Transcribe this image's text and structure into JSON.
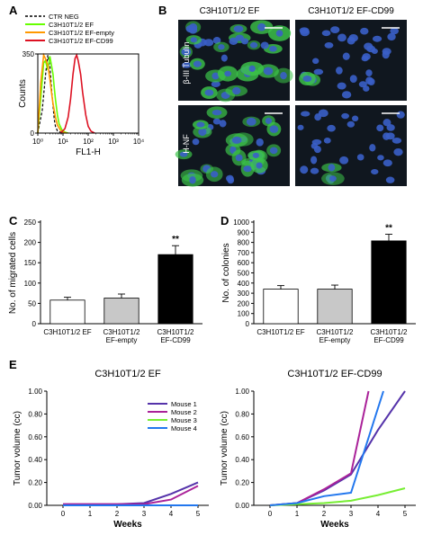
{
  "panels": {
    "A": "A",
    "B": "B",
    "C": "C",
    "D": "D",
    "E": "E"
  },
  "colors": {
    "ctr_neg": "#000000",
    "ef": "#66ff00",
    "ef_empty": "#ff9900",
    "ef_cd99": "#dd1122",
    "bar_white": "#ffffff",
    "bar_gray": "#c8c8c8",
    "bar_black": "#000000",
    "mouse1": "#5533aa",
    "mouse2": "#aa2299",
    "mouse3": "#77ee33",
    "mouse4": "#2277ee",
    "micro_bg": "#10171f",
    "tubulin_green": "#3cc44a",
    "nucleus_blue": "#3a5fc8"
  },
  "micrographs": {
    "col_ef": "C3H10T1/2 EF",
    "col_cd99": "C3H10T1/2 EF-CD99",
    "row_tubulin": "β-III Tubulin",
    "row_hnf": "H-NF"
  },
  "chart_data": [
    {
      "id": "A",
      "type": "line",
      "xlabel": "FL1-H",
      "ylabel": "Counts",
      "xscale": "log",
      "xlim": [
        1,
        10000
      ],
      "ylim": [
        0,
        350
      ],
      "xticks": [
        "10⁰",
        "10¹",
        "10²",
        "10³",
        "10⁴"
      ],
      "yticks": [
        "0",
        "350"
      ],
      "legend_position": "top-left",
      "series": [
        {
          "name": "CTR NEG",
          "style": "dashed",
          "color": "#000000",
          "x": [
            1,
            1.5,
            2,
            2.5,
            3,
            3.5,
            4,
            4.5,
            5,
            6,
            8,
            12
          ],
          "y": [
            0,
            100,
            250,
            345,
            300,
            200,
            120,
            60,
            30,
            10,
            3,
            0
          ]
        },
        {
          "name": "C3H10T1/2 EF",
          "style": "solid",
          "color": "#66ff00",
          "x": [
            1,
            1.3,
            1.7,
            2,
            2.5,
            3,
            3.5,
            4,
            4.5,
            5,
            6,
            7,
            9,
            12,
            16
          ],
          "y": [
            0,
            150,
            310,
            320,
            280,
            340,
            300,
            260,
            200,
            150,
            80,
            40,
            15,
            4,
            0
          ]
        },
        {
          "name": "C3H10T1/2 EF-empty",
          "style": "solid",
          "color": "#ff9900",
          "x": [
            1,
            1.3,
            1.7,
            2,
            2.5,
            3,
            3.5,
            4,
            5,
            6,
            8,
            10,
            14
          ],
          "y": [
            0,
            220,
            345,
            330,
            300,
            240,
            180,
            130,
            70,
            35,
            12,
            4,
            0
          ]
        },
        {
          "name": "C3H10T1/2 EF-CD99",
          "style": "solid",
          "color": "#dd1122",
          "x": [
            8,
            12,
            16,
            20,
            25,
            30,
            35,
            40,
            50,
            60,
            80,
            100,
            130,
            180
          ],
          "y": [
            0,
            20,
            70,
            150,
            260,
            330,
            345,
            320,
            260,
            180,
            80,
            30,
            8,
            0
          ]
        }
      ]
    },
    {
      "id": "C",
      "type": "bar",
      "ylabel": "No. of migrated cells",
      "ylim": [
        0,
        250
      ],
      "yticks": [
        0,
        50,
        100,
        150,
        200,
        250
      ],
      "categories": [
        [
          "C3H10T1/2 EF"
        ],
        [
          "C3H10T1/2",
          "EF-empty"
        ],
        [
          "C3H10T1/2",
          "EF-CD99"
        ]
      ],
      "values": [
        58,
        63,
        170
      ],
      "errors": [
        7,
        10,
        22
      ],
      "fills": [
        "#ffffff",
        "#c8c8c8",
        "#000000"
      ],
      "significance": [
        "",
        "",
        "**"
      ]
    },
    {
      "id": "D",
      "type": "bar",
      "ylabel": "No. of colonies",
      "ylim": [
        0,
        1000
      ],
      "yticks": [
        0,
        100,
        200,
        300,
        400,
        500,
        600,
        700,
        800,
        900,
        1000
      ],
      "categories": [
        [
          "C3H10T1/2 EF"
        ],
        [
          "C3H10T1/2",
          "EF-empty"
        ],
        [
          "C3H10T1/2",
          "EF-CD99"
        ]
      ],
      "values": [
        340,
        340,
        815
      ],
      "errors": [
        35,
        40,
        65
      ],
      "fills": [
        "#ffffff",
        "#c8c8c8",
        "#000000"
      ],
      "significance": [
        "",
        "",
        "**"
      ]
    },
    {
      "id": "E1",
      "type": "line",
      "title": "C3H10T1/2 EF",
      "xlabel": "Weeks",
      "ylabel": "Tumor volume (cc)",
      "xlim": [
        -0.6,
        5.4
      ],
      "ylim": [
        0,
        1.0
      ],
      "xticks": [
        0,
        1,
        2,
        3,
        4,
        5
      ],
      "yticks": [
        "0.00",
        "0.20",
        "0.40",
        "0.60",
        "0.80",
        "1.00"
      ],
      "legend_position": "top-right",
      "series": [
        {
          "name": "Mouse 1",
          "color": "#5533aa",
          "x": [
            0,
            1,
            2,
            3,
            4,
            5
          ],
          "y": [
            0.01,
            0.01,
            0.01,
            0.02,
            0.1,
            0.2
          ]
        },
        {
          "name": "Mouse 2",
          "color": "#aa2299",
          "x": [
            0,
            1,
            2,
            3,
            4,
            5
          ],
          "y": [
            0.01,
            0.01,
            0.01,
            0.01,
            0.05,
            0.17
          ]
        },
        {
          "name": "Mouse 3",
          "color": "#77ee33",
          "x": [
            0,
            1,
            2,
            3,
            4,
            5
          ],
          "y": [
            0.0,
            0.0,
            0.0,
            0.0,
            0.0,
            0.0
          ]
        },
        {
          "name": "Mouse 4",
          "color": "#2277ee",
          "x": [
            0,
            1,
            2,
            3,
            4,
            5
          ],
          "y": [
            0.0,
            0.0,
            0.0,
            0.0,
            0.0,
            0.0
          ]
        }
      ]
    },
    {
      "id": "E2",
      "type": "line",
      "title": "C3H10T1/2 EF-CD99",
      "xlabel": "Weeks",
      "ylabel": "Tumor volume (cc)",
      "xlim": [
        -0.6,
        5.4
      ],
      "ylim": [
        0,
        1.0
      ],
      "xticks": [
        0,
        1,
        2,
        3,
        4,
        5
      ],
      "yticks": [
        "0.00",
        "0.20",
        "0.40",
        "0.60",
        "0.80",
        "1.00"
      ],
      "series": [
        {
          "name": "Mouse 1",
          "color": "#5533aa",
          "x": [
            0,
            1,
            2,
            3,
            4,
            5
          ],
          "y": [
            0.0,
            0.02,
            0.13,
            0.27,
            0.66,
            1.0
          ]
        },
        {
          "name": "Mouse 2",
          "color": "#aa2299",
          "x": [
            0,
            1,
            2,
            3,
            3.65
          ],
          "y": [
            0.0,
            0.02,
            0.14,
            0.28,
            1.0
          ]
        },
        {
          "name": "Mouse 3",
          "color": "#77ee33",
          "x": [
            0,
            1,
            2,
            3,
            4,
            5
          ],
          "y": [
            0.0,
            0.01,
            0.02,
            0.04,
            0.09,
            0.15
          ]
        },
        {
          "name": "Mouse 4",
          "color": "#2277ee",
          "x": [
            0,
            1,
            2,
            3,
            4.2
          ],
          "y": [
            0.0,
            0.02,
            0.08,
            0.11,
            1.0
          ]
        }
      ]
    }
  ]
}
